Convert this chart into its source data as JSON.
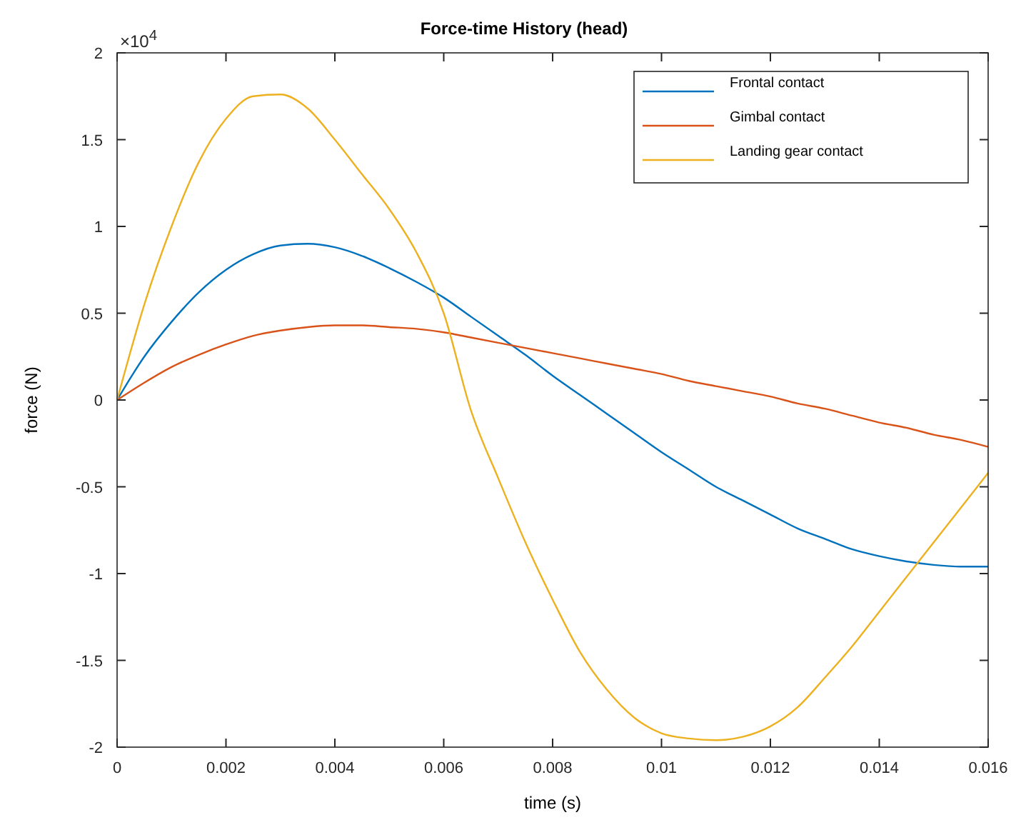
{
  "chart_data": {
    "type": "line",
    "title": "Force-time History (head)",
    "xlabel": "time (s)",
    "ylabel": "force (N)",
    "annotations": [
      "×10$^{4}$"
    ],
    "x": [
      0,
      0.0005,
      0.001,
      0.0015,
      0.002,
      0.0025,
      0.003,
      0.0035,
      0.004,
      0.0045,
      0.005,
      0.0055,
      0.006,
      0.0065,
      0.007,
      0.0075,
      0.008,
      0.0085,
      0.009,
      0.0095,
      0.01,
      0.0105,
      0.011,
      0.0115,
      0.012,
      0.0125,
      0.013,
      0.0135,
      0.014,
      0.0145,
      0.015,
      0.0155,
      0.016
    ],
    "series": [
      {
        "name": "Frontal contact",
        "color": "#0072bd",
        "values": [
          0,
          0.25,
          0.45,
          0.62,
          0.75,
          0.84,
          0.89,
          0.9,
          0.88,
          0.83,
          0.76,
          0.68,
          0.59,
          0.48,
          0.37,
          0.26,
          0.14,
          0.03,
          -0.08,
          -0.19,
          -0.3,
          -0.4,
          -0.5,
          -0.58,
          -0.66,
          -0.74,
          -0.8,
          -0.86,
          -0.9,
          -0.93,
          -0.95,
          -0.96,
          -0.96
        ]
      },
      {
        "name": "Gimbal contact",
        "color": "#d95319",
        "values": [
          0,
          0.1,
          0.19,
          0.26,
          0.32,
          0.37,
          0.4,
          0.42,
          0.43,
          0.43,
          0.42,
          0.41,
          0.39,
          0.36,
          0.33,
          0.3,
          0.27,
          0.24,
          0.21,
          0.18,
          0.15,
          0.11,
          0.08,
          0.05,
          0.02,
          -0.02,
          -0.05,
          -0.09,
          -0.13,
          -0.16,
          -0.2,
          -0.23,
          -0.27
        ]
      },
      {
        "name": "Landing gear contact",
        "color": "#edb120",
        "values": [
          0,
          0.55,
          1.0,
          1.37,
          1.62,
          1.75,
          1.76,
          1.68,
          1.5,
          1.3,
          1.1,
          0.85,
          0.5,
          -0.06,
          -0.45,
          -0.82,
          -1.15,
          -1.45,
          -1.67,
          -1.83,
          -1.92,
          -1.95,
          -1.96,
          -1.94,
          -1.88,
          -1.77,
          -1.6,
          -1.42,
          -1.22,
          -1.02,
          -0.82,
          -0.62,
          -0.42
        ]
      }
    ],
    "xlim": [
      0,
      0.016
    ],
    "xticks": [
      0,
      0.002,
      0.004,
      0.006,
      0.008,
      0.01,
      0.012,
      0.014,
      0.016
    ],
    "ylim": [
      -2,
      2
    ],
    "yticks": [
      -2,
      -1.5,
      -1,
      -0.5,
      0,
      0.5,
      1,
      1.5,
      2
    ],
    "grid": false,
    "legend": "top right",
    "line_style": "solid"
  }
}
